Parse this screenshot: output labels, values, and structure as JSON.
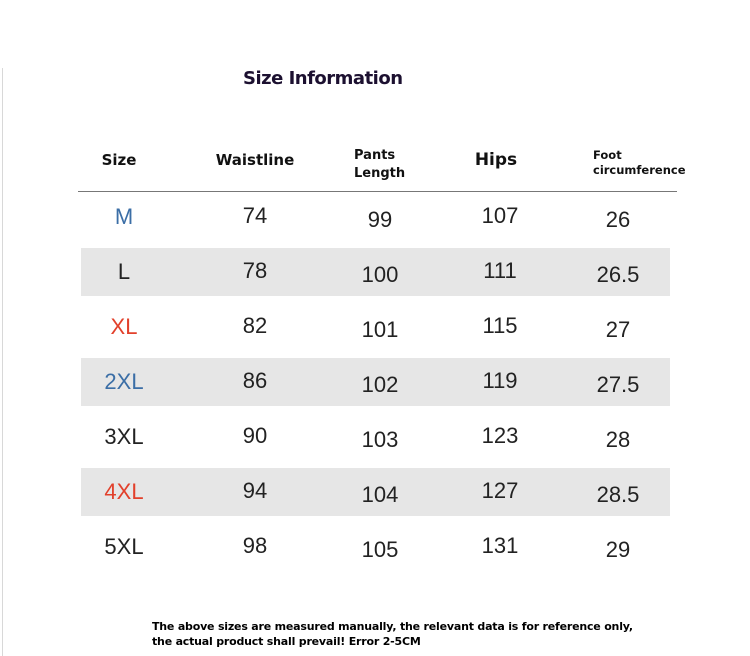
{
  "title": "Size Information",
  "headers": [
    "Size",
    "Waistline",
    "Pants Length",
    "Hips",
    "Foot circumference"
  ],
  "rows": [
    {
      "size": "M",
      "values": [
        "74",
        "99",
        "107",
        "26"
      ],
      "size_color": "#3b6ea6",
      "shaded": false
    },
    {
      "size": "L",
      "values": [
        "78",
        "100",
        "111",
        "26.5"
      ],
      "size_color": "#222222",
      "shaded": true
    },
    {
      "size": "XL",
      "values": [
        "82",
        "101",
        "115",
        "27"
      ],
      "size_color": "#e2402b",
      "shaded": false
    },
    {
      "size": "2XL",
      "values": [
        "86",
        "102",
        "119",
        "27.5"
      ],
      "size_color": "#3b6ea6",
      "shaded": true
    },
    {
      "size": "3XL",
      "values": [
        "90",
        "103",
        "123",
        "28"
      ],
      "size_color": "#222222",
      "shaded": false
    },
    {
      "size": "4XL",
      "values": [
        "94",
        "104",
        "127",
        "28.5"
      ],
      "size_color": "#e2402b",
      "shaded": true
    },
    {
      "size": "5XL",
      "values": [
        "98",
        "105",
        "131",
        "29"
      ],
      "size_color": "#222222",
      "shaded": false
    }
  ],
  "note": "The above sizes are measured manually, the relevant data is for reference only, the actual product shall prevail! Error 2-5CM"
}
